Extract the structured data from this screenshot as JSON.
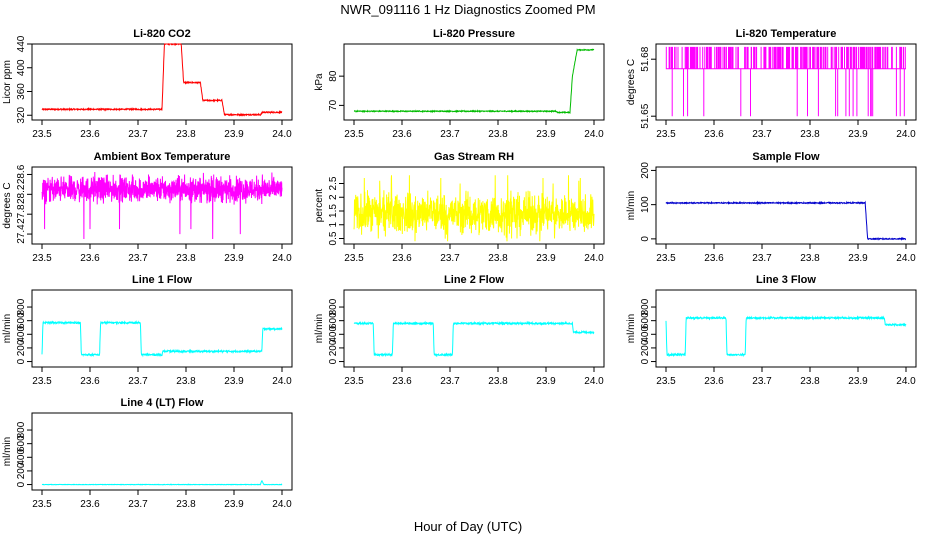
{
  "title": "NWR_091116  1 Hz Diagnostics Zoomed PM",
  "xlabel": "Hour of Day (UTC)",
  "chart_data": [
    {
      "type": "line",
      "title": "Li-820 CO2",
      "ylabel": "Licor ppm",
      "color": "#ff0000",
      "xlim": [
        23.5,
        24.0
      ],
      "ylim": [
        312,
        440
      ],
      "yticks": [
        320,
        360,
        400,
        440
      ],
      "xticks": [
        "23.5",
        "23.6",
        "23.7",
        "23.8",
        "23.9",
        "24.0"
      ],
      "x": [
        23.5,
        23.75,
        23.755,
        23.79,
        23.795,
        23.83,
        23.835,
        23.875,
        23.88,
        23.955,
        23.96,
        24.0
      ],
      "y": [
        330,
        330,
        440,
        440,
        375,
        375,
        345,
        345,
        321,
        321,
        325,
        325
      ],
      "noise": 1
    },
    {
      "type": "line",
      "title": "Li-820 Pressure",
      "ylabel": "kPa",
      "color": "#00bb00",
      "xlim": [
        23.5,
        24.0
      ],
      "ylim": [
        65,
        91
      ],
      "yticks": [
        70,
        80
      ],
      "xticks": [
        "23.5",
        "23.6",
        "23.7",
        "23.8",
        "23.9",
        "24.0"
      ],
      "x": [
        23.5,
        23.92,
        23.925,
        23.95,
        23.955,
        23.965,
        24.0
      ],
      "y": [
        68,
        68,
        67.6,
        67.6,
        80,
        89,
        89
      ],
      "noise": 0.15
    },
    {
      "type": "spikes",
      "title": "Li-820 Temperature",
      "ylabel": "degrees C",
      "color": "#ff00ff",
      "xlim": [
        23.5,
        24.0
      ],
      "ylim": [
        51.648,
        51.688
      ],
      "yticks": [
        51.65,
        51.68
      ],
      "xticks": [
        "23.5",
        "23.6",
        "23.7",
        "23.8",
        "23.9",
        "24.0"
      ],
      "base": 51.675,
      "up": 51.6865,
      "down": 51.65,
      "spike_up": 40,
      "spike_down": 22
    },
    {
      "type": "noise",
      "title": "Ambient Box Temperature",
      "ylabel": "degrees C",
      "color": "#ff00ff",
      "xlim": [
        23.5,
        24.0
      ],
      "ylim": [
        27.2,
        28.75
      ],
      "yticks": [
        27.4,
        27.8,
        28.2,
        28.6
      ],
      "xticks": [
        "23.5",
        "23.6",
        "23.7",
        "23.8",
        "23.9",
        "24.0"
      ],
      "mean": 28.3,
      "spread": 0.12,
      "outliers": [
        27.4,
        27.5,
        27.6,
        27.3,
        28.65,
        28.6
      ],
      "density": 1.0
    },
    {
      "type": "noise",
      "title": "Gas Stream RH",
      "ylabel": "percent",
      "color": "#ffff00",
      "xlim": [
        23.5,
        24.0
      ],
      "ylim": [
        0.3,
        3.1
      ],
      "yticks": [
        0.5,
        1.0,
        1.5,
        2.0,
        2.5
      ],
      "xticks": [
        "23.5",
        "23.6",
        "23.7",
        "23.8",
        "23.9",
        "24.0"
      ],
      "mean": 1.4,
      "spread": 0.35,
      "outliers": [
        2.8,
        2.7,
        2.5,
        0.4,
        0.5,
        2.6
      ],
      "density": 0.7
    },
    {
      "type": "line",
      "title": "Sample Flow",
      "ylabel": "ml/min",
      "color": "#0000cc",
      "xlim": [
        23.5,
        24.0
      ],
      "ylim": [
        -15,
        210
      ],
      "yticks": [
        0,
        100,
        200
      ],
      "xticks": [
        "23.5",
        "23.6",
        "23.7",
        "23.8",
        "23.9",
        "24.0"
      ],
      "x": [
        23.5,
        23.915,
        23.92,
        24.0
      ],
      "y": [
        105,
        105,
        0,
        0
      ],
      "noise": 1.5
    },
    {
      "type": "line",
      "title": "Line 1 Flow",
      "ylabel": "ml/min",
      "color": "#00ffff",
      "xlim": [
        23.5,
        24.0
      ],
      "ylim": [
        -80,
        1050
      ],
      "yticks": [
        0,
        200,
        400,
        600,
        800
      ],
      "xticks": [
        "23.5",
        "23.6",
        "23.7",
        "23.8",
        "23.9",
        "24.0"
      ],
      "x": [
        23.5,
        23.502,
        23.58,
        23.582,
        23.62,
        23.622,
        23.705,
        23.707,
        23.75,
        23.752,
        23.958,
        23.96,
        24.0
      ],
      "y": [
        100,
        570,
        570,
        100,
        100,
        570,
        570,
        100,
        100,
        150,
        150,
        480,
        480
      ],
      "noise": 12
    },
    {
      "type": "line",
      "title": "Line 2 Flow",
      "ylabel": "ml/min",
      "color": "#00ffff",
      "xlim": [
        23.5,
        24.0
      ],
      "ylim": [
        -80,
        1050
      ],
      "yticks": [
        0,
        200,
        400,
        600,
        800
      ],
      "xticks": [
        "23.5",
        "23.6",
        "23.7",
        "23.8",
        "23.9",
        "24.0"
      ],
      "x": [
        23.5,
        23.54,
        23.542,
        23.58,
        23.582,
        23.665,
        23.667,
        23.705,
        23.707,
        23.955,
        23.957,
        24.0
      ],
      "y": [
        560,
        560,
        100,
        100,
        560,
        560,
        100,
        100,
        560,
        560,
        430,
        430
      ],
      "noise": 12
    },
    {
      "type": "line",
      "title": "Line 3 Flow",
      "ylabel": "ml/min",
      "color": "#00ffff",
      "xlim": [
        23.5,
        24.0
      ],
      "ylim": [
        -80,
        1050
      ],
      "yticks": [
        0,
        200,
        400,
        600,
        800
      ],
      "xticks": [
        "23.5",
        "23.6",
        "23.7",
        "23.8",
        "23.9",
        "24.0"
      ],
      "x": [
        23.5,
        23.502,
        23.54,
        23.542,
        23.625,
        23.627,
        23.665,
        23.667,
        23.955,
        23.957,
        24.0
      ],
      "y": [
        600,
        100,
        100,
        640,
        640,
        100,
        100,
        640,
        640,
        540,
        540
      ],
      "noise": 12
    },
    {
      "type": "line",
      "title": "Line 4 (LT) Flow",
      "ylabel": "ml/min",
      "color": "#00ffff",
      "xlim": [
        23.5,
        24.0
      ],
      "ylim": [
        -80,
        1050
      ],
      "yticks": [
        0,
        200,
        400,
        600,
        800
      ],
      "xticks": [
        "23.5",
        "23.6",
        "23.7",
        "23.8",
        "23.9",
        "24.0"
      ],
      "x": [
        23.5,
        23.955,
        23.958,
        23.962,
        24.0
      ],
      "y": [
        0,
        0,
        60,
        0,
        0
      ],
      "noise": 3
    }
  ]
}
